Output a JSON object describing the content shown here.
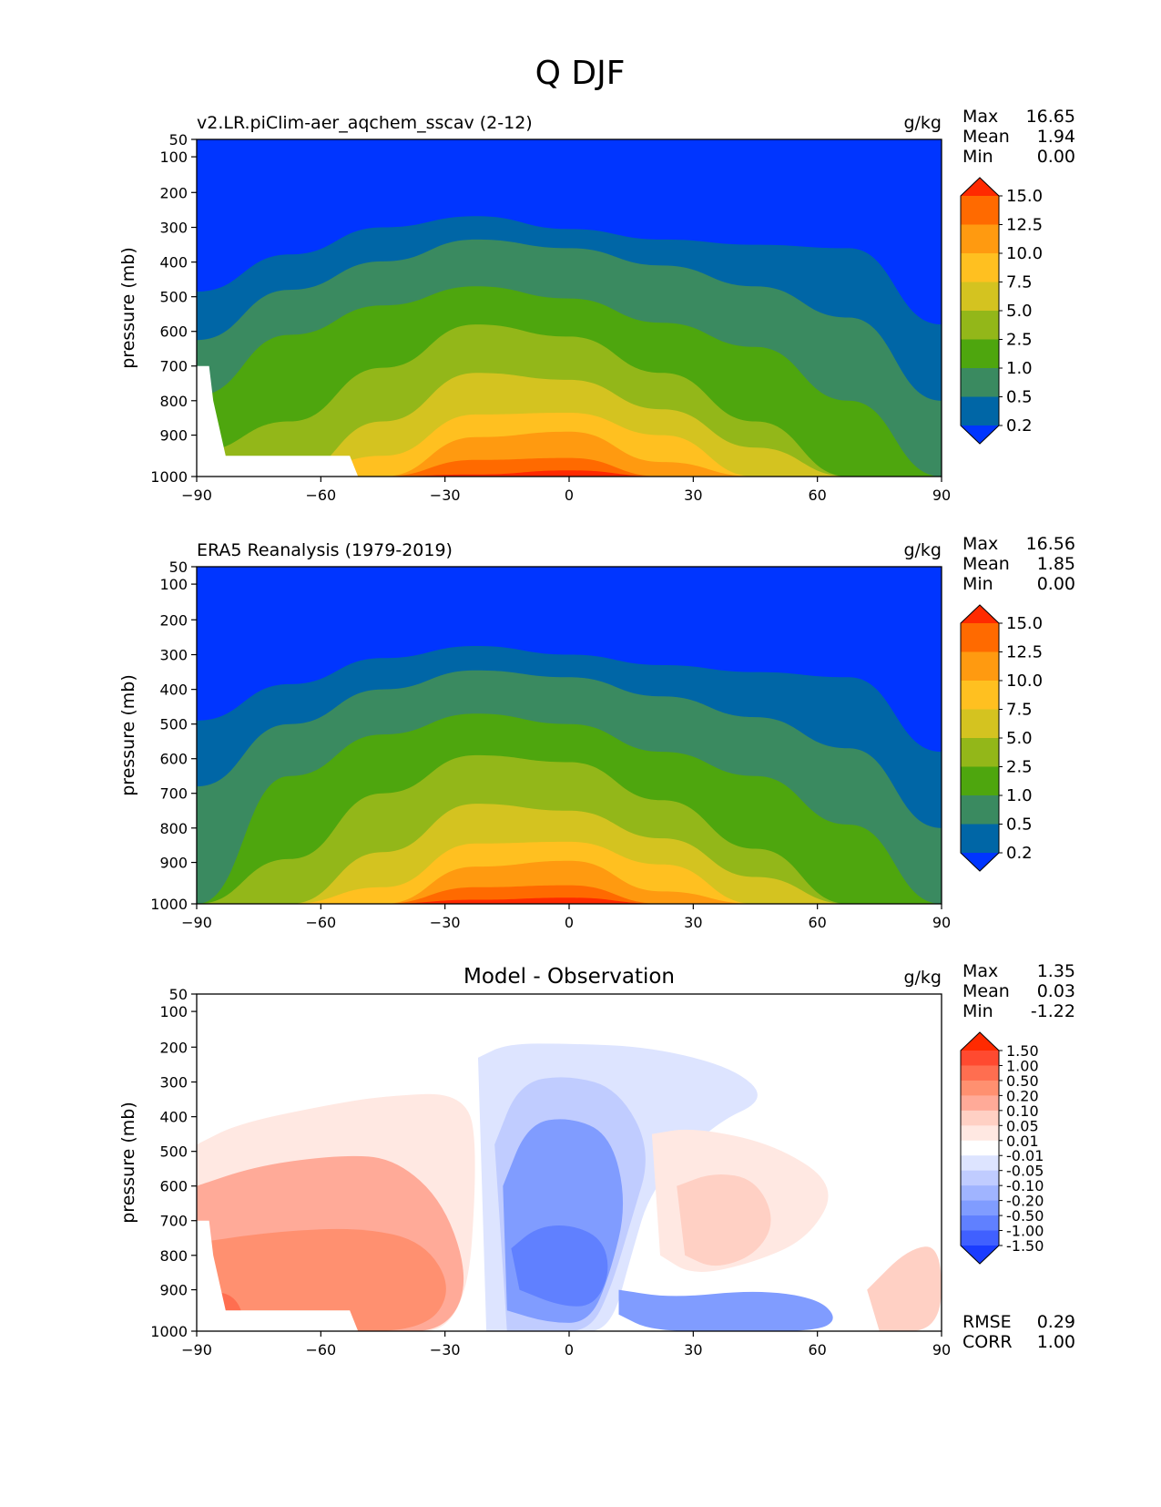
{
  "figure_title": "Q DJF",
  "chart_data": [
    {
      "type": "heatmap",
      "subtitle": "v2.LR.piClim-aer_aqchem_sscav (2-12)",
      "units": "g/kg",
      "stats": [
        {
          "label": "Max",
          "value": "16.65"
        },
        {
          "label": "Mean",
          "value": "1.94"
        },
        {
          "label": "Min",
          "value": "0.00"
        }
      ],
      "ylabel": "pressure (mb)",
      "xlim": [
        -90,
        90
      ],
      "ylim": [
        1000,
        50
      ],
      "xticks": [
        "−90",
        "−60",
        "−30",
        "0",
        "30",
        "60",
        "90"
      ],
      "yticks": [
        "50",
        "100",
        "200",
        "300",
        "400",
        "500",
        "600",
        "700",
        "800",
        "900",
        "1000"
      ],
      "colorbar": {
        "levels": [
          "15.0",
          "12.5",
          "10.0",
          "7.5",
          "5.0",
          "2.5",
          "1.0",
          "0.5",
          "0.2"
        ],
        "colors": [
          "#ff2a00",
          "#ff6a00",
          "#ff9a10",
          "#ffc020",
          "#d4c320",
          "#93b719",
          "#4ea60e",
          "#3a8a60",
          "#0066a6",
          "#0035ff"
        ]
      },
      "contour_tops": [
        [
          485,
          378,
          300,
          268,
          305,
          335,
          350,
          360,
          580
        ],
        [
          625,
          480,
          398,
          335,
          360,
          410,
          470,
          560,
          800
        ],
        [
          785,
          610,
          525,
          470,
          505,
          575,
          645,
          800,
          1000
        ],
        [
          940,
          860,
          705,
          580,
          615,
          720,
          860,
          1000,
          1000
        ],
        [
          1000,
          1000,
          860,
          720,
          740,
          825,
          930,
          1000,
          1000
        ],
        [
          1000,
          1000,
          950,
          840,
          835,
          900,
          1000,
          1000,
          1000
        ],
        [
          1000,
          1000,
          1000,
          905,
          890,
          965,
          1000,
          1000,
          1000
        ],
        [
          1000,
          1000,
          1000,
          960,
          955,
          1000,
          1000,
          1000,
          1000
        ],
        [
          1000,
          1000,
          1000,
          995,
          985,
          1000,
          1000,
          1000,
          1000
        ]
      ]
    },
    {
      "type": "heatmap",
      "subtitle": "ERA5 Reanalysis (1979-2019)",
      "units": "g/kg",
      "stats": [
        {
          "label": "Max",
          "value": "16.56"
        },
        {
          "label": "Mean",
          "value": "1.85"
        },
        {
          "label": "Min",
          "value": "0.00"
        }
      ],
      "ylabel": "pressure (mb)",
      "xlim": [
        -90,
        90
      ],
      "ylim": [
        1000,
        50
      ],
      "xticks": [
        "−90",
        "−60",
        "−30",
        "0",
        "30",
        "60",
        "90"
      ],
      "yticks": [
        "50",
        "100",
        "200",
        "300",
        "400",
        "500",
        "600",
        "700",
        "800",
        "900",
        "1000"
      ],
      "colorbar": {
        "levels": [
          "15.0",
          "12.5",
          "10.0",
          "7.5",
          "5.0",
          "2.5",
          "1.0",
          "0.5",
          "0.2"
        ],
        "colors": [
          "#ff2a00",
          "#ff6a00",
          "#ff9a10",
          "#ffc020",
          "#d4c320",
          "#93b719",
          "#4ea60e",
          "#3a8a60",
          "#0066a6",
          "#0035ff"
        ]
      },
      "contour_tops": [
        [
          490,
          385,
          310,
          275,
          300,
          330,
          350,
          365,
          580
        ],
        [
          680,
          500,
          400,
          345,
          365,
          420,
          480,
          570,
          800
        ],
        [
          1000,
          650,
          530,
          470,
          500,
          580,
          650,
          790,
          1000
        ],
        [
          1000,
          890,
          700,
          590,
          610,
          720,
          860,
          1000,
          1000
        ],
        [
          1000,
          1000,
          870,
          730,
          750,
          830,
          935,
          1000,
          1000
        ],
        [
          1000,
          1000,
          960,
          845,
          840,
          905,
          1000,
          1000,
          1000
        ],
        [
          1000,
          1000,
          1000,
          910,
          895,
          970,
          1000,
          1000,
          1000
        ],
        [
          1000,
          1000,
          1000,
          960,
          955,
          1000,
          1000,
          1000,
          1000
        ],
        [
          1000,
          1000,
          1000,
          990,
          985,
          1000,
          1000,
          1000,
          1000
        ]
      ]
    },
    {
      "type": "heatmap",
      "subtitle": "Model - Observation",
      "units": "g/kg",
      "stats": [
        {
          "label": "Max",
          "value": "1.35"
        },
        {
          "label": "Mean",
          "value": "0.03"
        },
        {
          "label": "Min",
          "value": "-1.22"
        }
      ],
      "bottom_stats": [
        {
          "label": "RMSE",
          "value": "0.29"
        },
        {
          "label": "CORR",
          "value": "1.00"
        }
      ],
      "ylabel": "pressure (mb)",
      "xlim": [
        -90,
        90
      ],
      "ylim": [
        1000,
        50
      ],
      "xticks": [
        "−90",
        "−60",
        "−30",
        "0",
        "30",
        "60",
        "90"
      ],
      "yticks": [
        "50",
        "100",
        "200",
        "300",
        "400",
        "500",
        "600",
        "700",
        "800",
        "900",
        "1000"
      ],
      "colorbar": {
        "levels": [
          "1.50",
          "1.00",
          "0.50",
          "0.20",
          "0.10",
          "0.05",
          "0.01",
          "-0.01",
          "-0.05",
          "-0.10",
          "-0.20",
          "-0.50",
          "-1.00",
          "-1.50"
        ],
        "colors": [
          "#ff2a00",
          "#ff4a30",
          "#ff6e50",
          "#ff9070",
          "#ffaa98",
          "#ffd0c4",
          "#ffe8e2",
          "#ffffff",
          "#dde4ff",
          "#c0ccff",
          "#a0b4ff",
          "#809cff",
          "#6080ff",
          "#4060ff",
          "#1a3cff"
        ]
      },
      "regions": [
        {
          "level": 0.05,
          "lat": [
            -90,
            -80,
            -60,
            -45,
            -25,
            -22,
            -25,
            -45,
            -60,
            -80,
            -90
          ],
          "p": [
            480,
            420,
            370,
            340,
            330,
            500,
            1000,
            1000,
            1000,
            1000,
            1000
          ]
        },
        {
          "level": 0.2,
          "lat": [
            -90,
            -75,
            -55,
            -42,
            -30,
            -24,
            -30,
            -45,
            -65,
            -90
          ],
          "p": [
            600,
            540,
            510,
            520,
            650,
            880,
            1000,
            1000,
            1000,
            1000
          ]
        },
        {
          "level": 0.5,
          "lat": [
            -88,
            -70,
            -50,
            -35,
            -28,
            -35,
            -60,
            -88
          ],
          "p": [
            760,
            730,
            720,
            760,
            900,
            1000,
            1000,
            1000
          ]
        },
        {
          "level": 1.0,
          "lat": [
            -86,
            -80,
            -78,
            -86
          ],
          "p": [
            900,
            920,
            1000,
            1000
          ]
        },
        {
          "level": -0.01,
          "lat": [
            -22,
            -15,
            0,
            20,
            40,
            48,
            35,
            20,
            15,
            10,
            0,
            -10,
            -20
          ],
          "p": [
            230,
            190,
            190,
            200,
            260,
            350,
            420,
            600,
            800,
            1000,
            1000,
            1000,
            1000
          ]
        },
        {
          "level": -0.05,
          "lat": [
            -18,
            -12,
            0,
            12,
            20,
            15,
            10,
            5,
            -5,
            -15
          ],
          "p": [
            480,
            300,
            280,
            320,
            500,
            700,
            900,
            1000,
            1000,
            1000
          ]
        },
        {
          "level": -0.2,
          "lat": [
            -16,
            -10,
            0,
            10,
            14,
            10,
            5,
            -5,
            -15
          ],
          "p": [
            600,
            420,
            400,
            450,
            650,
            850,
            980,
            980,
            950
          ]
        },
        {
          "level": -0.5,
          "lat": [
            -14,
            -8,
            0,
            8,
            10,
            6,
            -2,
            -12
          ],
          "p": [
            780,
            720,
            710,
            750,
            850,
            940,
            940,
            900
          ]
        },
        {
          "level": -0.2,
          "lat": [
            12,
            25,
            45,
            60,
            65,
            60,
            40,
            20,
            12
          ],
          "p": [
            900,
            920,
            900,
            920,
            970,
            1000,
            1000,
            1000,
            960
          ]
        },
        {
          "level": 0.05,
          "lat": [
            20,
            30,
            50,
            65,
            58,
            45,
            30,
            22
          ],
          "p": [
            450,
            430,
            480,
            600,
            750,
            820,
            860,
            800
          ]
        },
        {
          "level": 0.1,
          "lat": [
            26,
            35,
            45,
            50,
            45,
            35,
            28
          ],
          "p": [
            600,
            560,
            580,
            700,
            800,
            840,
            800
          ]
        },
        {
          "level": 0.1,
          "lat": [
            72,
            82,
            90,
            90,
            75
          ],
          "p": [
            900,
            780,
            770,
            1000,
            1000
          ]
        }
      ]
    }
  ]
}
